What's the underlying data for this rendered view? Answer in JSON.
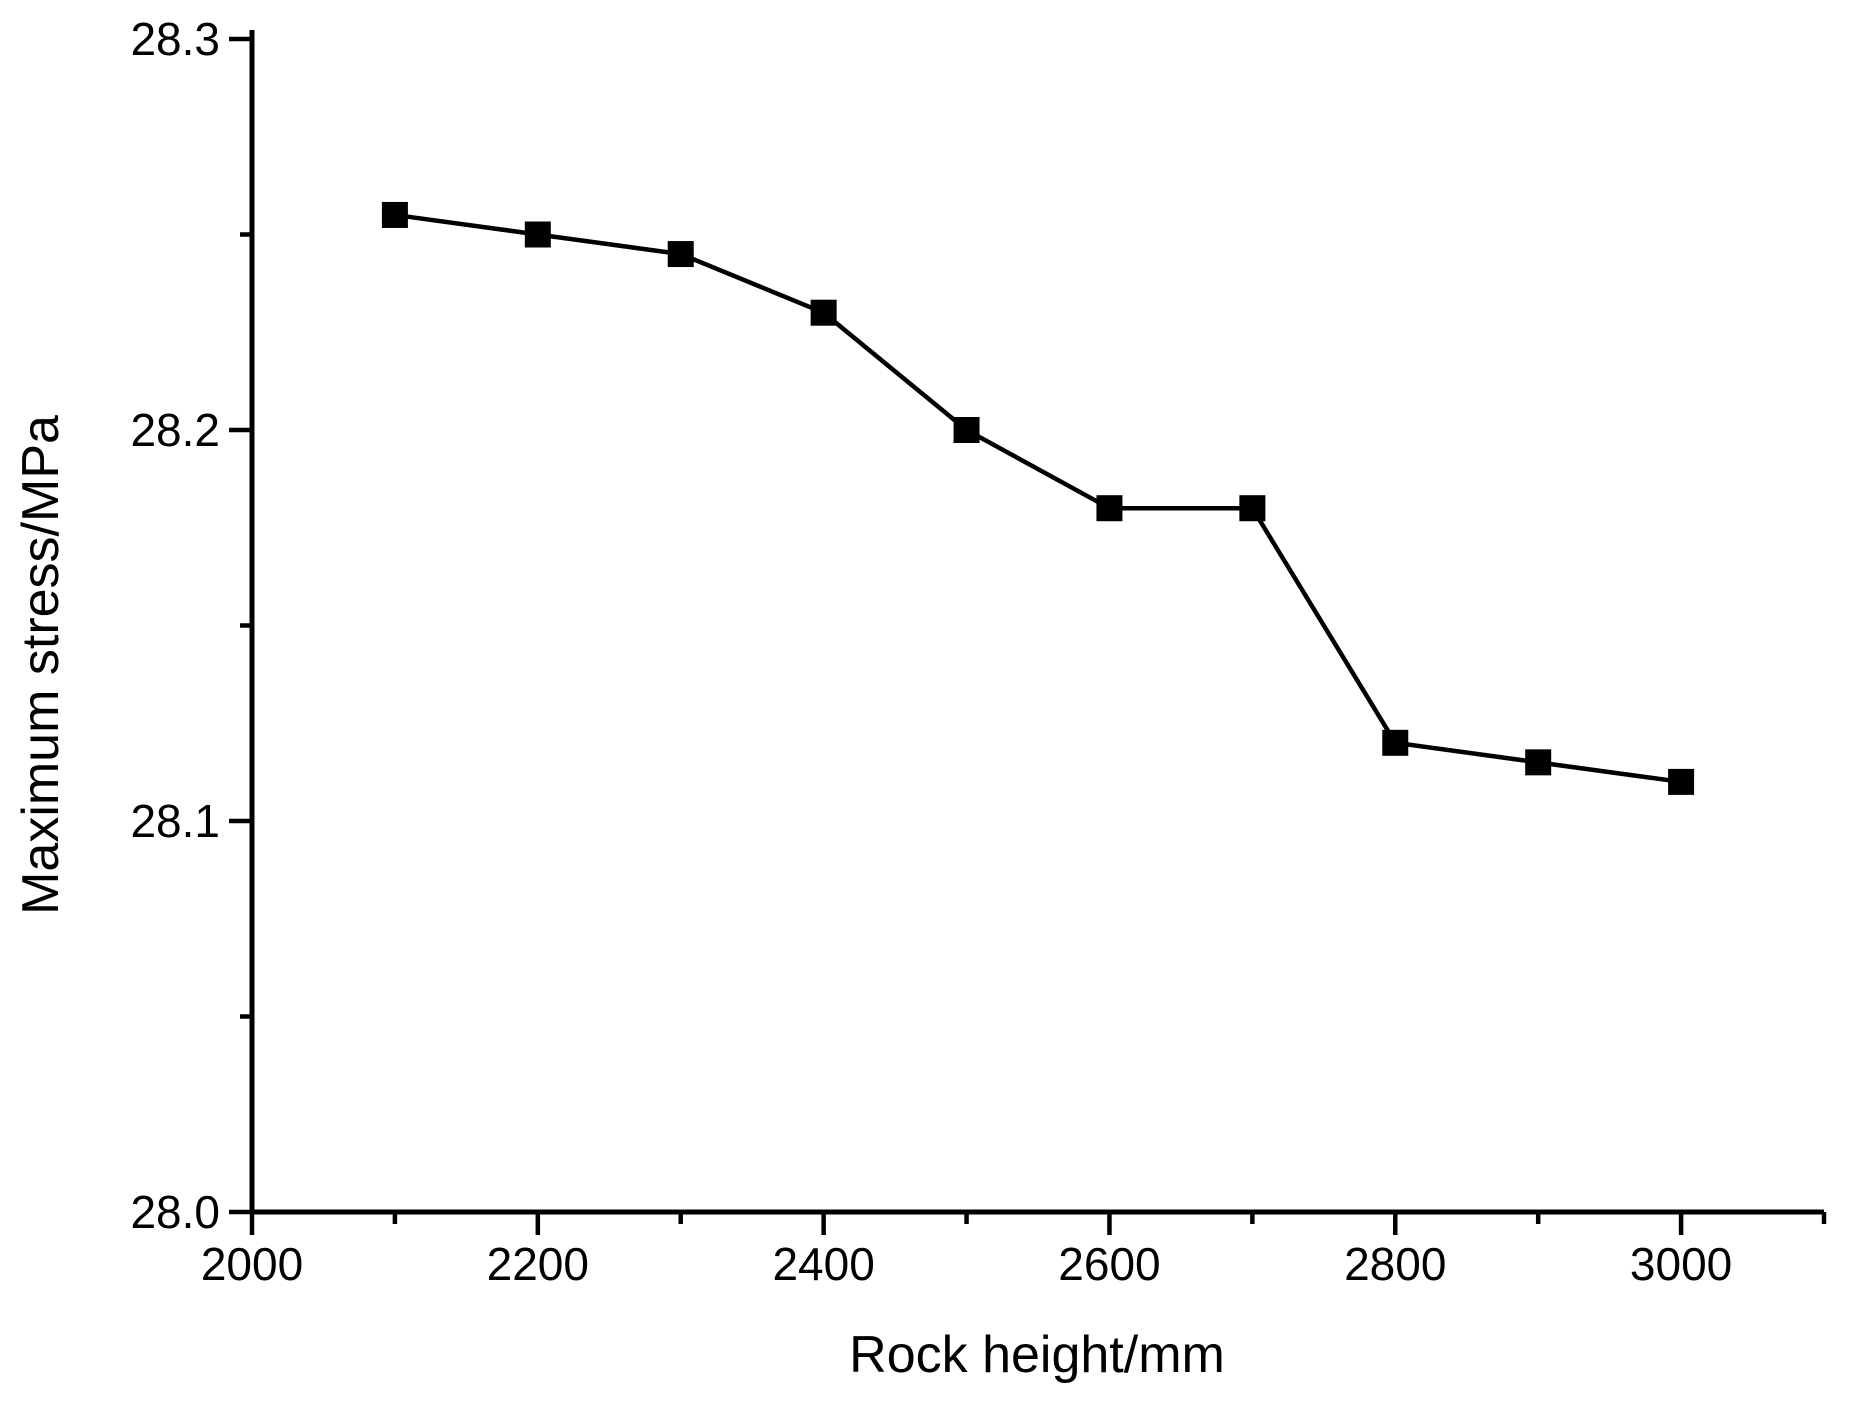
{
  "figure": {
    "background": "#ffffff",
    "foreground": "#000000"
  },
  "chart_data": {
    "type": "line",
    "title": "",
    "xlabel": "Rock height/mm",
    "ylabel": "Maximum stress/MPa",
    "series": [
      {
        "name": "Maximum stress",
        "x": [
          2100,
          2200,
          2300,
          2400,
          2500,
          2600,
          2700,
          2800,
          2900,
          3000
        ],
        "y": [
          28.255,
          28.25,
          28.245,
          28.23,
          28.2,
          28.18,
          28.18,
          28.12,
          28.115,
          28.11
        ],
        "line_color": "#000000",
        "marker": "square",
        "marker_color": "#000000"
      }
    ],
    "xlim": [
      2000,
      3100
    ],
    "ylim": [
      28.0,
      28.3
    ],
    "x_major_ticks": [
      2000,
      2200,
      2400,
      2600,
      2800,
      3000
    ],
    "x_major_tick_labels": [
      "2000",
      "2200",
      "2400",
      "2600",
      "2800",
      "3000"
    ],
    "x_minor_ticks": [
      2100,
      2300,
      2500,
      2700,
      2900,
      3100
    ],
    "y_major_ticks": [
      28.0,
      28.1,
      28.2,
      28.3
    ],
    "y_major_tick_labels": [
      "28.0",
      "28.1",
      "28.2",
      "28.3"
    ],
    "y_minor_ticks": [
      28.05,
      28.15,
      28.25
    ],
    "grid": false,
    "legend": false,
    "tick_direction": "out"
  }
}
